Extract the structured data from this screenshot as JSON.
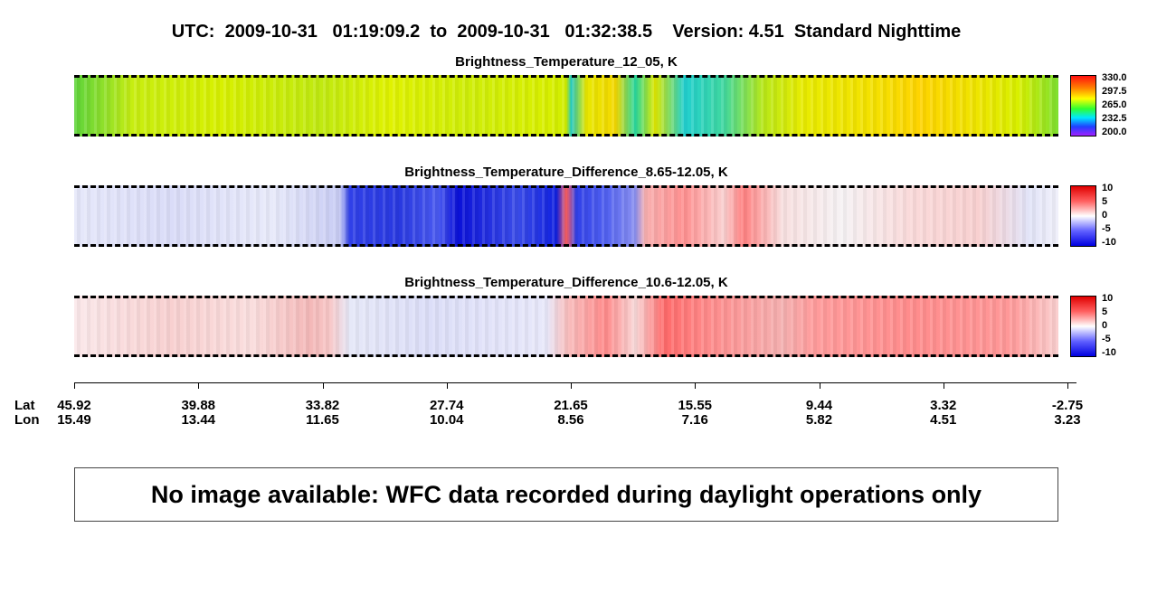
{
  "header": {
    "title": "UTC:  2009-10-31   01:19:09.2  to  2009-10-31   01:32:38.5    Version: 4.51  Standard Nighttime"
  },
  "panels": [
    {
      "title": "Brightness_Temperature_12_05, K",
      "colorbar_labels": [
        "330.0",
        "297.5",
        "265.0",
        "232.5",
        "200.0"
      ]
    },
    {
      "title": "Brightness_Temperature_Difference_8.65-12.05, K",
      "colorbar_labels": [
        "10",
        "5",
        "0",
        "-5",
        "-10"
      ]
    },
    {
      "title": "Brightness_Temperature_Difference_10.6-12.05, K",
      "colorbar_labels": [
        "10",
        "5",
        "0",
        "-5",
        "-10"
      ]
    }
  ],
  "axis": {
    "lat_label": "Lat",
    "lon_label": "Lon",
    "lat": [
      "45.92",
      "39.88",
      "33.82",
      "27.74",
      "21.65",
      "15.55",
      "9.44",
      "3.32",
      "-2.75"
    ],
    "lon": [
      "15.49",
      "13.44",
      "11.65",
      "10.04",
      "8.56",
      "7.16",
      "5.82",
      "4.51",
      "3.23"
    ]
  },
  "notice": "No image available: WFC data recorded during daylight operations only"
}
